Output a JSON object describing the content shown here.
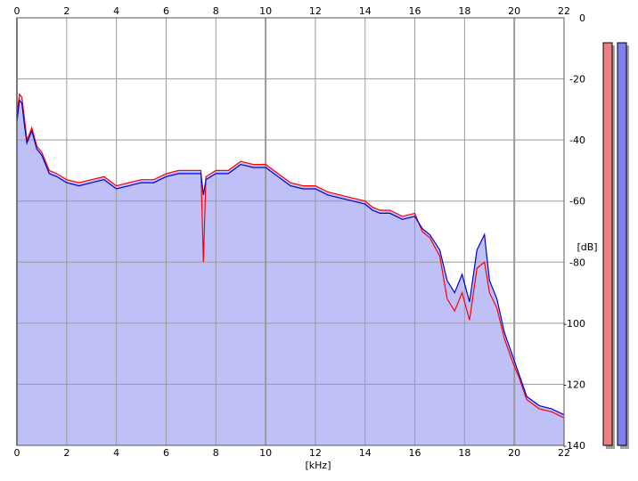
{
  "chart_data": {
    "type": "area",
    "xlabel": "[kHz]",
    "ylabel": "[dB]",
    "xlim": [
      0,
      22
    ],
    "ylim": [
      -140,
      0
    ],
    "x_ticks": [
      "0",
      "2",
      "4",
      "6",
      "8",
      "10",
      "12",
      "14",
      "16",
      "18",
      "20",
      "22"
    ],
    "y_ticks": [
      "0",
      "-20",
      "-40",
      "-60",
      "-80",
      "-100",
      "-120",
      "-140"
    ],
    "grid": true,
    "series": [
      {
        "color": "#ff0000",
        "x": [
          0.0,
          0.1,
          0.2,
          0.3,
          0.4,
          0.5,
          0.6,
          0.8,
          1.0,
          1.3,
          1.6,
          2.0,
          2.5,
          3.0,
          3.5,
          4.0,
          4.5,
          5.0,
          5.5,
          6.0,
          6.5,
          7.0,
          7.4,
          7.5,
          7.6,
          8.0,
          8.5,
          9.0,
          9.5,
          10.0,
          10.5,
          11.0,
          11.5,
          12.0,
          12.5,
          13.0,
          13.5,
          14.0,
          14.3,
          14.6,
          15.0,
          15.5,
          16.0,
          16.3,
          16.6,
          17.0,
          17.3,
          17.6,
          17.9,
          18.2,
          18.5,
          18.8,
          19.0,
          19.3,
          19.6,
          19.9,
          20.2,
          20.5,
          21.0,
          21.5,
          22.0
        ],
        "values": [
          -32,
          -25,
          -26,
          -33,
          -40,
          -38,
          -36,
          -42,
          -44,
          -50,
          -51,
          -53,
          -54,
          -53,
          -52,
          -55,
          -54,
          -53,
          -53,
          -51,
          -50,
          -50,
          -50,
          -80,
          -52,
          -50,
          -50,
          -47,
          -48,
          -48,
          -51,
          -54,
          -55,
          -55,
          -57,
          -58,
          -59,
          -60,
          -62,
          -63,
          -63,
          -65,
          -64,
          -70,
          -72,
          -78,
          -92,
          -96,
          -90,
          -99,
          -82,
          -80,
          -90,
          -95,
          -105,
          -112,
          -118,
          -125,
          -128,
          -129,
          -131
        ]
      },
      {
        "color": "#0000cc",
        "x": [
          0.0,
          0.1,
          0.2,
          0.3,
          0.4,
          0.5,
          0.6,
          0.8,
          1.0,
          1.3,
          1.6,
          2.0,
          2.5,
          3.0,
          3.5,
          4.0,
          4.5,
          5.0,
          5.5,
          6.0,
          6.5,
          7.0,
          7.4,
          7.5,
          7.6,
          8.0,
          8.5,
          9.0,
          9.5,
          10.0,
          10.5,
          11.0,
          11.5,
          12.0,
          12.5,
          13.0,
          13.5,
          14.0,
          14.3,
          14.6,
          15.0,
          15.5,
          16.0,
          16.3,
          16.6,
          17.0,
          17.3,
          17.6,
          17.9,
          18.2,
          18.5,
          18.8,
          19.0,
          19.3,
          19.6,
          19.9,
          20.2,
          20.5,
          21.0,
          21.5,
          22.0
        ],
        "values": [
          -34,
          -27,
          -28,
          -35,
          -41,
          -39,
          -37,
          -43,
          -45,
          -51,
          -52,
          -54,
          -55,
          -54,
          -53,
          -56,
          -55,
          -54,
          -54,
          -52,
          -51,
          -51,
          -51,
          -58,
          -53,
          -51,
          -51,
          -48,
          -49,
          -49,
          -52,
          -55,
          -56,
          -56,
          -58,
          -59,
          -60,
          -61,
          -63,
          -64,
          -64,
          -66,
          -65,
          -69,
          -71,
          -76,
          -86,
          -90,
          -84,
          -93,
          -76,
          -71,
          -86,
          -92,
          -103,
          -110,
          -117,
          -124,
          -127,
          -128,
          -130
        ]
      }
    ],
    "level_meters": [
      {
        "color": "#f08080"
      },
      {
        "color": "#8080f0"
      }
    ]
  }
}
